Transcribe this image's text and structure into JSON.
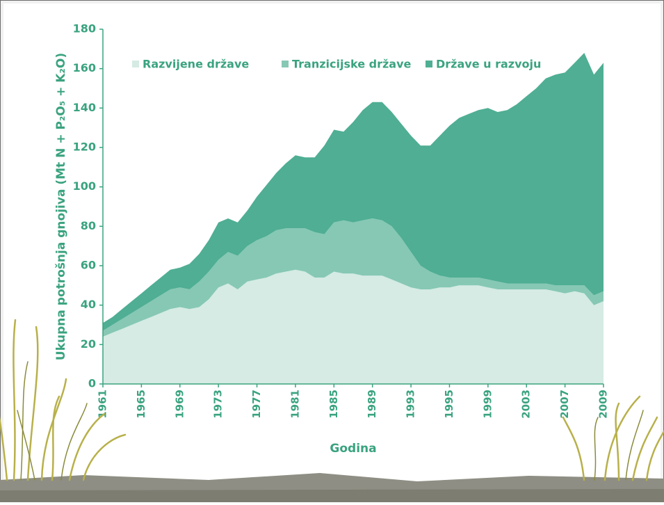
{
  "chart_data": {
    "type": "stacked-area",
    "y_label": "Ukupna potrošnja gnojiva (Mt N + P₂O₅ + K₂O)",
    "x_label": "Godina",
    "categories": [
      "1961",
      null,
      null,
      null,
      "1965",
      null,
      null,
      null,
      "1969",
      null,
      null,
      null,
      "1973",
      null,
      null,
      null,
      "1977",
      null,
      null,
      null,
      "1981",
      null,
      null,
      null,
      "1985",
      null,
      null,
      null,
      "1989",
      null,
      null,
      null,
      "1993",
      null,
      null,
      null,
      "1995",
      null,
      null,
      null,
      "1999",
      null,
      null,
      null,
      "2003",
      null,
      null,
      null,
      "2007",
      null,
      null,
      null,
      "2009"
    ],
    "series": [
      {
        "name": "Razvijene države",
        "color": "#d5ebe4",
        "values": [
          24,
          26,
          28,
          30,
          32,
          34,
          36,
          38,
          39,
          38,
          39,
          43,
          49,
          51,
          48,
          52,
          53,
          54,
          56,
          57,
          58,
          57,
          54,
          54,
          57,
          56,
          56,
          55,
          55,
          55,
          53,
          51,
          49,
          48,
          48,
          49,
          49,
          50,
          50,
          50,
          49,
          48,
          48,
          48,
          48,
          48,
          48,
          47,
          46,
          47,
          46,
          40,
          42
        ]
      },
      {
        "name": "Tranzicijske države",
        "color": "#86c8b4",
        "values": [
          3,
          4,
          5,
          6,
          7,
          8,
          9,
          10,
          10,
          10,
          13,
          14,
          14,
          16,
          17,
          18,
          20,
          21,
          22,
          22,
          21,
          22,
          23,
          22,
          25,
          27,
          26,
          28,
          29,
          28,
          27,
          23,
          18,
          12,
          9,
          6,
          5,
          4,
          4,
          4,
          4,
          4,
          3,
          3,
          3,
          3,
          3,
          3,
          4,
          3,
          4,
          5,
          5
        ]
      },
      {
        "name": "Države u razvoju",
        "color": "#4fae93",
        "values": [
          4,
          4,
          5,
          6,
          7,
          8,
          9,
          10,
          10,
          13,
          14,
          16,
          19,
          17,
          17,
          18,
          22,
          26,
          29,
          33,
          37,
          36,
          38,
          45,
          47,
          45,
          51,
          56,
          59,
          60,
          58,
          58,
          59,
          61,
          64,
          71,
          77,
          81,
          83,
          85,
          87,
          86,
          88,
          91,
          95,
          99,
          104,
          107,
          108,
          113,
          118,
          112,
          116
        ]
      }
    ],
    "ylim": [
      0,
      180
    ],
    "yticks": [
      0,
      20,
      40,
      60,
      80,
      100,
      120,
      140,
      160,
      180
    ],
    "axis_color": "#3aa37f"
  }
}
